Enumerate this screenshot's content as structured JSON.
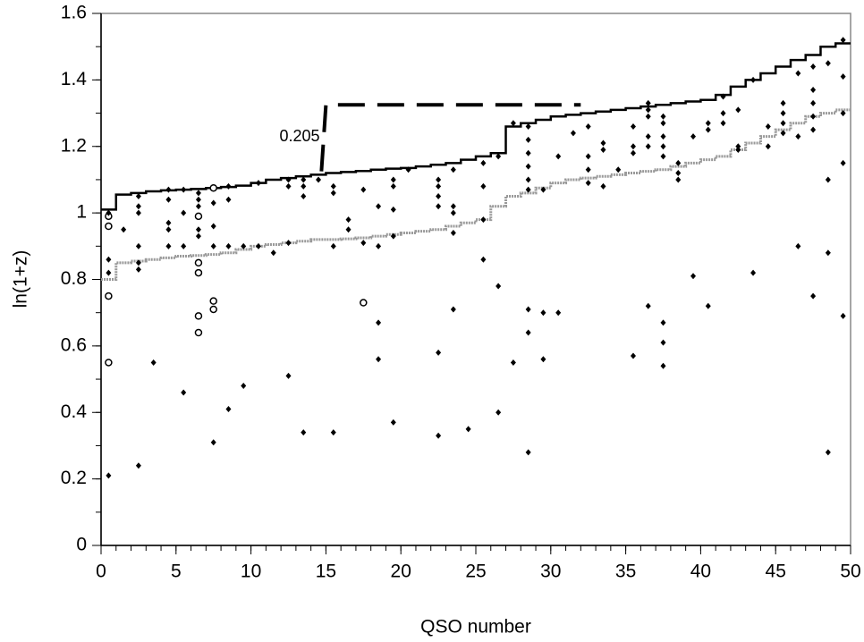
{
  "chart_data": {
    "type": "scatter",
    "x_label": "QSO number",
    "y_label": "ln(1+z)",
    "annotation": "0.205",
    "xlim": [
      0,
      50
    ],
    "ylim": [
      0,
      1.6
    ],
    "xticks": [
      0,
      5,
      10,
      15,
      20,
      25,
      30,
      35,
      40,
      45,
      50
    ],
    "yticks": [
      0,
      0.2,
      0.4,
      0.6,
      0.8,
      1,
      1.2,
      1.4,
      1.6
    ],
    "series": [
      {
        "style": "step",
        "color": "#000000",
        "x": [
          0,
          1,
          2,
          3,
          4,
          5,
          6,
          7,
          8,
          9,
          10,
          11,
          12,
          13,
          14,
          15,
          16,
          17,
          18,
          19,
          20,
          21,
          22,
          23,
          24,
          25,
          26,
          27,
          28,
          29,
          30,
          31,
          32,
          33,
          34,
          35,
          36,
          37,
          38,
          39,
          40,
          41,
          42,
          43,
          44,
          45,
          46,
          47,
          48,
          49,
          50
        ],
        "values": [
          1.01,
          1.055,
          1.06,
          1.065,
          1.068,
          1.07,
          1.072,
          1.075,
          1.078,
          1.082,
          1.09,
          1.1,
          1.105,
          1.11,
          1.115,
          1.12,
          1.123,
          1.126,
          1.13,
          1.133,
          1.135,
          1.14,
          1.145,
          1.15,
          1.16,
          1.17,
          1.18,
          1.26,
          1.27,
          1.28,
          1.29,
          1.295,
          1.3,
          1.305,
          1.31,
          1.315,
          1.32,
          1.325,
          1.33,
          1.335,
          1.34,
          1.355,
          1.38,
          1.4,
          1.42,
          1.44,
          1.46,
          1.475,
          1.5,
          1.51,
          1.51
        ]
      },
      {
        "style": "step",
        "color": "#999999",
        "x": [
          0,
          1,
          2,
          3,
          4,
          5,
          6,
          7,
          8,
          9,
          10,
          11,
          12,
          13,
          14,
          15,
          16,
          17,
          18,
          19,
          20,
          21,
          22,
          23,
          24,
          25,
          26,
          27,
          28,
          29,
          30,
          31,
          32,
          33,
          34,
          35,
          36,
          37,
          38,
          39,
          40,
          41,
          42,
          43,
          44,
          45,
          46,
          47,
          48,
          49,
          50
        ],
        "values": [
          0.8,
          0.85,
          0.855,
          0.86,
          0.865,
          0.87,
          0.872,
          0.875,
          0.88,
          0.89,
          0.9,
          0.905,
          0.91,
          0.915,
          0.92,
          0.92,
          0.922,
          0.925,
          0.93,
          0.935,
          0.94,
          0.945,
          0.95,
          0.96,
          0.97,
          0.98,
          1.02,
          1.05,
          1.06,
          1.075,
          1.09,
          1.1,
          1.105,
          1.11,
          1.115,
          1.12,
          1.125,
          1.13,
          1.14,
          1.15,
          1.16,
          1.17,
          1.19,
          1.21,
          1.23,
          1.25,
          1.27,
          1.29,
          1.3,
          1.31,
          1.31
        ]
      },
      {
        "style": "dashed",
        "color": "#000000",
        "x": [
          14.7,
          15.0,
          32.0
        ],
        "values": [
          1.125,
          1.325,
          1.325
        ]
      },
      {
        "style": "open",
        "color": "#000000",
        "x": [
          0.5,
          0.5,
          0.5,
          0.5,
          6.5,
          6.5,
          6.5,
          6.5,
          6.5,
          7.5,
          7.5,
          7.5,
          17.5
        ],
        "values": [
          0.99,
          0.96,
          0.75,
          0.55,
          0.99,
          0.85,
          0.82,
          0.69,
          0.64,
          1.075,
          0.735,
          0.71,
          0.73
        ]
      },
      {
        "style": "filled",
        "color": "#000000",
        "x": [
          0.5,
          0.5,
          0.5,
          0.5,
          1.5,
          2.5,
          2.5,
          2.5,
          2.5,
          2.5,
          2.5,
          2.5,
          3.5,
          4.5,
          4.5,
          4.5,
          4.5,
          4.5,
          5.5,
          5.5,
          5.5,
          5.5,
          6.5,
          6.5,
          6.5,
          6.5,
          6.5,
          7.5,
          7.5,
          7.5,
          7.5,
          8.5,
          8.5,
          8.5,
          8.5,
          9.5,
          9.5,
          10.5,
          10.5,
          11.5,
          12.5,
          12.5,
          12.5,
          12.5,
          13.5,
          13.5,
          13.5,
          13.5,
          14.5,
          15.5,
          15.5,
          15.5,
          15.5,
          16.5,
          16.5,
          17.5,
          17.5,
          18.5,
          18.5,
          18.5,
          18.5,
          19.5,
          19.5,
          19.5,
          19.5,
          19.5,
          20.5,
          22.5,
          22.5,
          22.5,
          22.5,
          22.5,
          22.5,
          23.5,
          23.5,
          23.5,
          23.5,
          23.5,
          24.5,
          25.5,
          25.5,
          25.5,
          25.5,
          26.5,
          26.5,
          26.5,
          27.5,
          27.5,
          28.5,
          28.5,
          28.5,
          28.5,
          28.5,
          28.5,
          28.5,
          28.5,
          28.5,
          29.5,
          29.5,
          29.5,
          30.5,
          30.5,
          31.5,
          32.5,
          32.5,
          32.5,
          32.5,
          33.5,
          33.5,
          33.5,
          34.5,
          35.5,
          35.5,
          35.5,
          35.5,
          36.5,
          36.5,
          36.5,
          36.5,
          36.5,
          36.5,
          37.5,
          37.5,
          37.5,
          37.5,
          37.5,
          37.5,
          37.5,
          37.5,
          38.5,
          38.5,
          38.5,
          39.5,
          39.5,
          40.5,
          40.5,
          40.5,
          41.5,
          41.5,
          41.5,
          42.5,
          42.5,
          42.5,
          43.5,
          43.5,
          44.5,
          44.5,
          45.5,
          45.5,
          45.5,
          45.5,
          46.5,
          46.5,
          46.5,
          47.5,
          47.5,
          47.5,
          47.5,
          47.5,
          47.5,
          48.5,
          48.5,
          48.5,
          48.5,
          49.5,
          49.5,
          49.5,
          49.5,
          49.5
        ],
        "values": [
          1.0,
          0.86,
          0.82,
          0.21,
          0.95,
          1.05,
          1.02,
          1.0,
          0.9,
          0.85,
          0.83,
          0.24,
          0.55,
          1.07,
          1.04,
          0.97,
          0.95,
          0.9,
          1.07,
          1.0,
          0.9,
          0.46,
          1.06,
          1.04,
          1.02,
          0.95,
          0.93,
          1.03,
          0.96,
          0.9,
          0.31,
          1.08,
          1.04,
          0.9,
          0.41,
          0.9,
          0.48,
          1.09,
          0.9,
          0.88,
          1.1,
          1.08,
          0.91,
          0.51,
          1.1,
          1.08,
          1.05,
          0.34,
          1.1,
          1.08,
          1.06,
          0.9,
          0.34,
          0.98,
          0.95,
          1.07,
          0.91,
          1.02,
          0.9,
          0.67,
          0.56,
          1.1,
          1.08,
          1.01,
          0.93,
          0.37,
          1.13,
          1.1,
          1.08,
          1.05,
          1.02,
          0.58,
          0.33,
          1.13,
          1.02,
          1.0,
          0.94,
          0.71,
          0.35,
          1.15,
          1.08,
          0.98,
          0.86,
          1.17,
          0.78,
          0.4,
          1.27,
          0.55,
          1.26,
          1.22,
          1.18,
          1.14,
          1.1,
          1.07,
          0.71,
          0.64,
          0.28,
          1.07,
          0.7,
          0.56,
          1.17,
          0.7,
          1.24,
          1.26,
          1.17,
          1.13,
          1.09,
          1.21,
          1.19,
          1.08,
          1.13,
          1.26,
          1.2,
          1.18,
          0.57,
          1.33,
          1.31,
          1.29,
          1.23,
          1.2,
          0.72,
          1.29,
          1.27,
          1.23,
          1.2,
          1.17,
          0.67,
          0.61,
          0.54,
          1.15,
          1.12,
          1.1,
          1.23,
          0.81,
          1.27,
          1.25,
          0.72,
          1.35,
          1.3,
          1.27,
          1.31,
          1.2,
          1.19,
          1.4,
          0.82,
          1.26,
          1.2,
          1.33,
          1.3,
          1.27,
          1.24,
          1.42,
          1.23,
          0.9,
          1.44,
          1.37,
          1.33,
          1.29,
          1.25,
          0.75,
          1.45,
          1.1,
          0.88,
          0.28,
          1.52,
          1.41,
          1.3,
          1.15,
          0.69
        ]
      }
    ]
  }
}
